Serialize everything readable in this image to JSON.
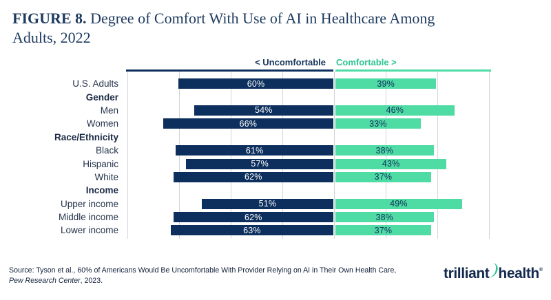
{
  "figure": {
    "label": "FIGURE 8.",
    "title_line1": "Degree of Comfort With Use of AI in Healthcare Among",
    "title_line2": "Adults, 2022"
  },
  "chart_data": {
    "type": "bar",
    "variant": "diverging-horizontal",
    "title": "Degree of Comfort With Use of AI in Healthcare Among Adults, 2022",
    "legend": {
      "left": "< Uncomfortable",
      "right": "Comfortable >"
    },
    "legend_position": "top",
    "axis": {
      "left_max_pct": 80,
      "right_max_pct": 60,
      "grid_interval_pct": 20,
      "unit": "%"
    },
    "grid": true,
    "colors": {
      "uncomfortable": "#0d2f5e",
      "comfortable": "#4edba4",
      "legend_left_text": "#16345c",
      "legend_right_text": "#2ec492",
      "gridline": "#d2d5d9"
    },
    "rows": [
      {
        "label": "U.S. Adults",
        "header": false,
        "uncomfortable": 60,
        "comfortable": 39
      },
      {
        "label": "Gender",
        "header": true
      },
      {
        "label": "Men",
        "header": false,
        "uncomfortable": 54,
        "comfortable": 46
      },
      {
        "label": "Women",
        "header": false,
        "uncomfortable": 66,
        "comfortable": 33
      },
      {
        "label": "Race/Ethnicity",
        "header": true
      },
      {
        "label": "Black",
        "header": false,
        "uncomfortable": 61,
        "comfortable": 38
      },
      {
        "label": "Hispanic",
        "header": false,
        "uncomfortable": 57,
        "comfortable": 43
      },
      {
        "label": "White",
        "header": false,
        "uncomfortable": 62,
        "comfortable": 37
      },
      {
        "label": "Income",
        "header": true
      },
      {
        "label": "Upper income",
        "header": false,
        "uncomfortable": 51,
        "comfortable": 49
      },
      {
        "label": "Middle income",
        "header": false,
        "uncomfortable": 62,
        "comfortable": 38
      },
      {
        "label": "Lower income",
        "header": false,
        "uncomfortable": 63,
        "comfortable": 37
      }
    ]
  },
  "source": {
    "line1": "Source: Tyson et al., 60% of Americans Would Be Uncomfortable With Provider Relying on AI in Their Own Health Care,",
    "line2_italic": "Pew Research Center",
    "line2_rest": ", 2023."
  },
  "logo": {
    "word1": "trilliant",
    "word2": "health",
    "mark": "®"
  }
}
